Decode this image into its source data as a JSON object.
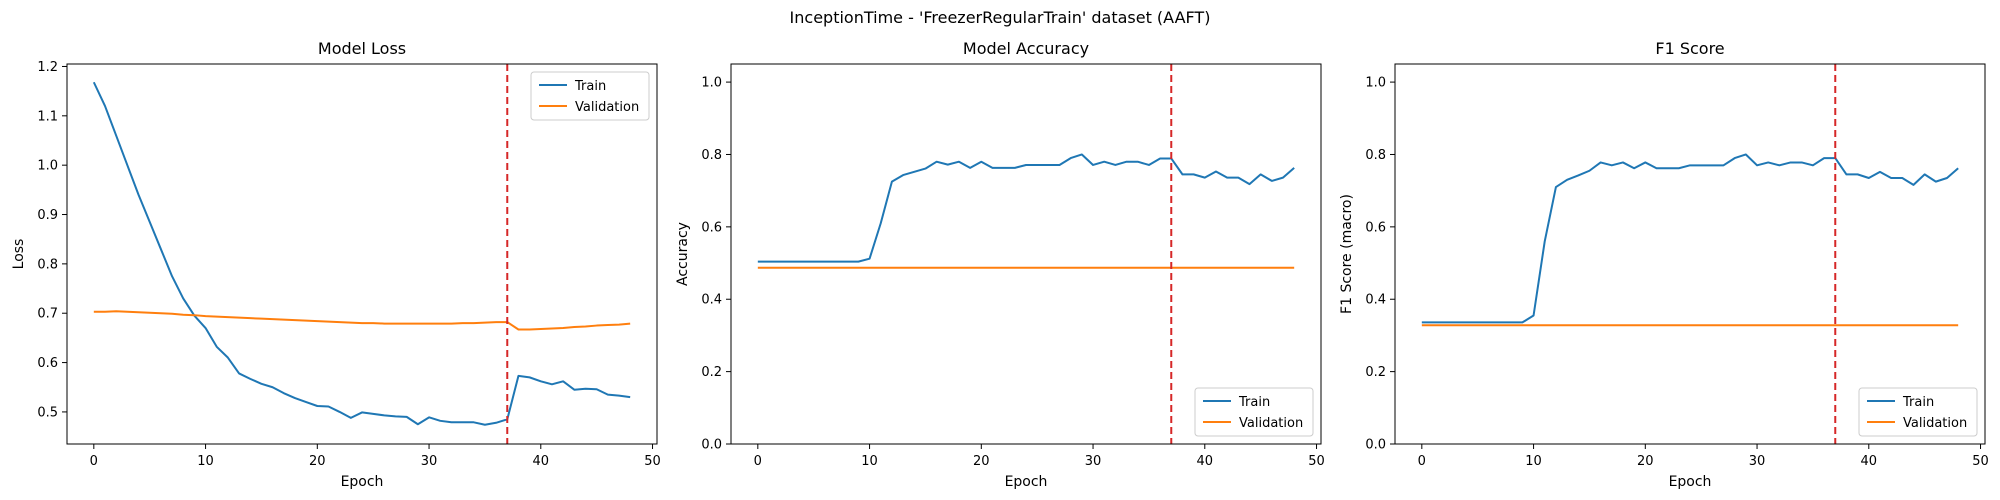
{
  "suptitle": "InceptionTime - 'FreezerRegularTrain' dataset (AAFT)",
  "colors": {
    "train": "#1f77b4",
    "validation": "#ff7f0e",
    "marker": "#d62728"
  },
  "chart_data": [
    {
      "type": "line",
      "title": "Model Loss",
      "xlabel": "Epoch",
      "ylabel": "Loss",
      "xlim": [
        -2.4,
        50.4
      ],
      "ylim": [
        0.435,
        1.205
      ],
      "xticks": [
        0,
        10,
        20,
        30,
        40,
        50
      ],
      "yticks": [
        0.5,
        0.6,
        0.7,
        0.8,
        0.9,
        1.0,
        1.1,
        1.2
      ],
      "ytick_labels": [
        "0.5",
        "0.6",
        "0.7",
        "0.8",
        "0.9",
        "1.0",
        "1.1",
        "1.2"
      ],
      "vline_x": 37,
      "legend_loc": "upper right",
      "series": [
        {
          "name": "Train",
          "color_key": "train",
          "values": [
            1.168,
            1.12,
            1.06,
            1.0,
            0.94,
            0.885,
            0.83,
            0.775,
            0.73,
            0.695,
            0.67,
            0.632,
            0.61,
            0.578,
            0.567,
            0.557,
            0.55,
            0.538,
            0.528,
            0.52,
            0.512,
            0.511,
            0.5,
            0.488,
            0.499,
            0.496,
            0.493,
            0.491,
            0.49,
            0.475,
            0.489,
            0.482,
            0.479,
            0.479,
            0.479,
            0.474,
            0.478,
            0.485,
            0.573,
            0.57,
            0.562,
            0.556,
            0.562,
            0.545,
            0.547,
            0.546,
            0.535,
            0.533,
            0.53
          ]
        },
        {
          "name": "Validation",
          "color_key": "validation",
          "values": [
            0.703,
            0.703,
            0.704,
            0.703,
            0.702,
            0.701,
            0.7,
            0.699,
            0.697,
            0.696,
            0.694,
            0.693,
            0.692,
            0.691,
            0.69,
            0.689,
            0.688,
            0.687,
            0.686,
            0.685,
            0.684,
            0.683,
            0.682,
            0.681,
            0.68,
            0.68,
            0.679,
            0.679,
            0.679,
            0.679,
            0.679,
            0.679,
            0.679,
            0.68,
            0.68,
            0.681,
            0.682,
            0.682,
            0.667,
            0.667,
            0.668,
            0.669,
            0.67,
            0.672,
            0.673,
            0.675,
            0.676,
            0.677,
            0.679
          ]
        }
      ]
    },
    {
      "type": "line",
      "title": "Model Accuracy",
      "xlabel": "Epoch",
      "ylabel": "Accuracy",
      "xlim": [
        -2.4,
        50.4
      ],
      "ylim": [
        0.0,
        1.05
      ],
      "xticks": [
        0,
        10,
        20,
        30,
        40,
        50
      ],
      "yticks": [
        0.0,
        0.2,
        0.4,
        0.6,
        0.8,
        1.0
      ],
      "ytick_labels": [
        "0.0",
        "0.2",
        "0.4",
        "0.6",
        "0.8",
        "1.0"
      ],
      "vline_x": 37,
      "legend_loc": "lower right",
      "series": [
        {
          "name": "Train",
          "color_key": "train",
          "values": [
            0.504,
            0.504,
            0.504,
            0.504,
            0.504,
            0.504,
            0.504,
            0.504,
            0.504,
            0.504,
            0.512,
            0.61,
            0.725,
            0.743,
            0.752,
            0.761,
            0.78,
            0.772,
            0.78,
            0.763,
            0.78,
            0.763,
            0.763,
            0.763,
            0.771,
            0.771,
            0.771,
            0.771,
            0.79,
            0.8,
            0.771,
            0.78,
            0.771,
            0.78,
            0.78,
            0.771,
            0.789,
            0.789,
            0.745,
            0.745,
            0.736,
            0.753,
            0.736,
            0.736,
            0.718,
            0.745,
            0.727,
            0.736,
            0.763
          ]
        },
        {
          "name": "Validation",
          "color_key": "validation",
          "values": [
            0.487,
            0.487,
            0.487,
            0.487,
            0.487,
            0.487,
            0.487,
            0.487,
            0.487,
            0.487,
            0.487,
            0.487,
            0.487,
            0.487,
            0.487,
            0.487,
            0.487,
            0.487,
            0.487,
            0.487,
            0.487,
            0.487,
            0.487,
            0.487,
            0.487,
            0.487,
            0.487,
            0.487,
            0.487,
            0.487,
            0.487,
            0.487,
            0.487,
            0.487,
            0.487,
            0.487,
            0.487,
            0.487,
            0.487,
            0.487,
            0.487,
            0.487,
            0.487,
            0.487,
            0.487,
            0.487,
            0.487,
            0.487,
            0.487
          ]
        }
      ]
    },
    {
      "type": "line",
      "title": "F1 Score",
      "xlabel": "Epoch",
      "ylabel": "F1 Score (macro)",
      "xlim": [
        -2.4,
        50.4
      ],
      "ylim": [
        0.0,
        1.05
      ],
      "xticks": [
        0,
        10,
        20,
        30,
        40,
        50
      ],
      "yticks": [
        0.0,
        0.2,
        0.4,
        0.6,
        0.8,
        1.0
      ],
      "ytick_labels": [
        "0.0",
        "0.2",
        "0.4",
        "0.6",
        "0.8",
        "1.0"
      ],
      "vline_x": 37,
      "legend_loc": "lower right",
      "series": [
        {
          "name": "Train",
          "color_key": "train",
          "values": [
            0.336,
            0.336,
            0.336,
            0.336,
            0.336,
            0.336,
            0.336,
            0.336,
            0.336,
            0.336,
            0.355,
            0.56,
            0.71,
            0.73,
            0.742,
            0.755,
            0.778,
            0.77,
            0.778,
            0.762,
            0.778,
            0.762,
            0.762,
            0.762,
            0.77,
            0.77,
            0.77,
            0.77,
            0.79,
            0.8,
            0.77,
            0.778,
            0.77,
            0.778,
            0.778,
            0.77,
            0.79,
            0.79,
            0.745,
            0.745,
            0.735,
            0.752,
            0.735,
            0.735,
            0.716,
            0.745,
            0.725,
            0.735,
            0.762
          ]
        },
        {
          "name": "Validation",
          "color_key": "validation",
          "values": [
            0.328,
            0.328,
            0.328,
            0.328,
            0.328,
            0.328,
            0.328,
            0.328,
            0.328,
            0.328,
            0.328,
            0.328,
            0.328,
            0.328,
            0.328,
            0.328,
            0.328,
            0.328,
            0.328,
            0.328,
            0.328,
            0.328,
            0.328,
            0.328,
            0.328,
            0.328,
            0.328,
            0.328,
            0.328,
            0.328,
            0.328,
            0.328,
            0.328,
            0.328,
            0.328,
            0.328,
            0.328,
            0.328,
            0.328,
            0.328,
            0.328,
            0.328,
            0.328,
            0.328,
            0.328,
            0.328,
            0.328,
            0.328,
            0.328
          ]
        }
      ]
    }
  ]
}
